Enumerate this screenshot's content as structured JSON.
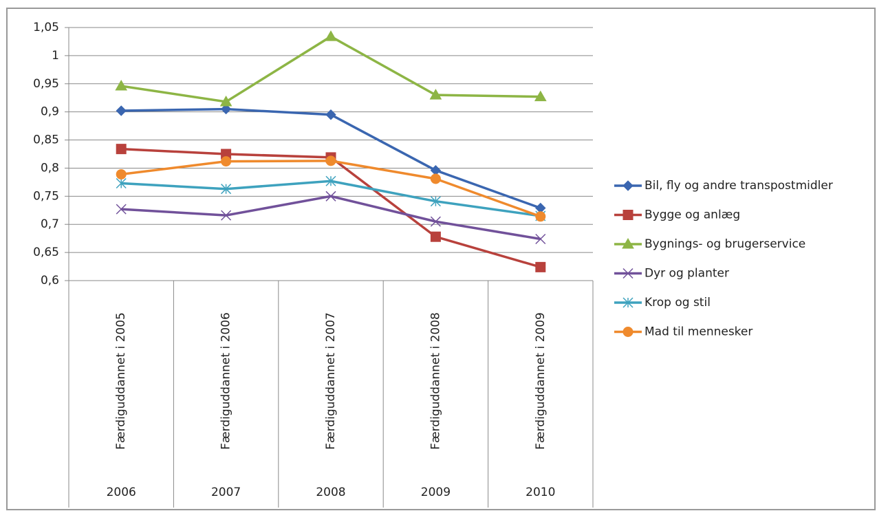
{
  "chart_data": {
    "type": "line",
    "categories": [
      "Færdiguddannet i 2005",
      "Færdiguddannet i 2006",
      "Færdiguddannet i 2007",
      "Færdiguddannet i 2008",
      "Færdiguddannet i 2009"
    ],
    "category_groups": [
      "2006",
      "2007",
      "2008",
      "2009",
      "2010"
    ],
    "series": [
      {
        "name": "Bil, fly og andre transpostmidler",
        "color": "#3a66b0",
        "marker": "diamond",
        "values": [
          0.902,
          0.905,
          0.895,
          0.796,
          0.729
        ]
      },
      {
        "name": "Bygge og anlæg",
        "color": "#b8413c",
        "marker": "square",
        "values": [
          0.834,
          0.825,
          0.819,
          0.678,
          0.624
        ]
      },
      {
        "name": "Bygnings- og brugerservice",
        "color": "#8db545",
        "marker": "triangle",
        "values": [
          0.946,
          0.918,
          1.034,
          0.93,
          0.927
        ]
      },
      {
        "name": "Dyr og planter",
        "color": "#71519a",
        "marker": "x",
        "values": [
          0.727,
          0.716,
          0.75,
          0.705,
          0.674
        ]
      },
      {
        "name": "Krop og stil",
        "color": "#3ea2be",
        "marker": "asterisk",
        "values": [
          0.773,
          0.763,
          0.777,
          0.741,
          0.715
        ]
      },
      {
        "name": "Mad til mennesker",
        "color": "#ef8a2d",
        "marker": "circle",
        "values": [
          0.789,
          0.812,
          0.813,
          0.781,
          0.714
        ]
      }
    ],
    "ylim": [
      0.6,
      1.05
    ],
    "yticks": [
      {
        "value": 0.6,
        "label": "0,6"
      },
      {
        "value": 0.65,
        "label": "0,65"
      },
      {
        "value": 0.7,
        "label": "0,7"
      },
      {
        "value": 0.75,
        "label": "0,75"
      },
      {
        "value": 0.8,
        "label": "0,8"
      },
      {
        "value": 0.85,
        "label": "0,85"
      },
      {
        "value": 0.9,
        "label": "0,9"
      },
      {
        "value": 0.95,
        "label": "0,95"
      },
      1,
      {
        "value": 1.05,
        "label": "1,05"
      }
    ],
    "grid": true,
    "legend": "right"
  }
}
